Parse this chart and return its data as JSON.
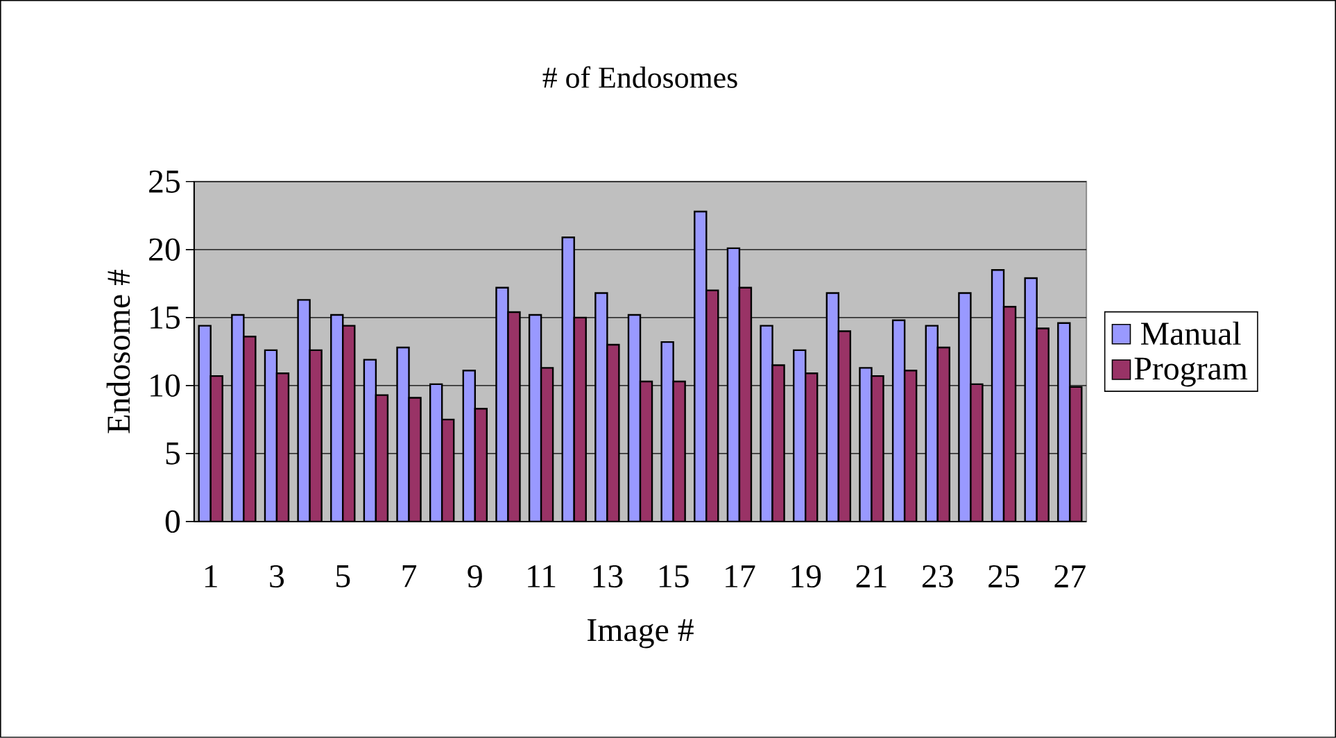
{
  "chart_data": {
    "type": "bar",
    "title": "# of Endosomes",
    "xlabel": "Image #",
    "ylabel": "Endosome #",
    "categories": [
      "1",
      null,
      "3",
      null,
      "5",
      null,
      "7",
      null,
      "9",
      null,
      "11",
      null,
      "13",
      null,
      "15",
      null,
      "17",
      null,
      "19",
      null,
      "21",
      null,
      "23",
      null,
      "25",
      null,
      "27"
    ],
    "series": [
      {
        "name": "Manual",
        "color": "#9999ff",
        "values": [
          14.4,
          15.2,
          12.6,
          16.3,
          15.2,
          11.9,
          12.8,
          10.1,
          11.1,
          17.2,
          15.2,
          20.9,
          16.8,
          15.2,
          13.2,
          22.8,
          20.1,
          14.4,
          12.6,
          16.8,
          11.3,
          14.8,
          14.4,
          16.8,
          18.5,
          17.9,
          14.6
        ]
      },
      {
        "name": "Program",
        "color": "#993366",
        "values": [
          10.7,
          13.6,
          10.9,
          12.6,
          14.4,
          9.3,
          9.1,
          7.5,
          8.3,
          15.4,
          11.3,
          15.0,
          13.0,
          10.3,
          10.3,
          17.0,
          17.2,
          11.5,
          10.9,
          14.0,
          10.7,
          11.1,
          12.8,
          10.1,
          15.8,
          14.2,
          9.9
        ]
      }
    ],
    "ylim": [
      0,
      25
    ],
    "yticks": [
      0,
      5,
      10,
      15,
      20,
      25
    ],
    "grid": "y",
    "legend": "right"
  }
}
